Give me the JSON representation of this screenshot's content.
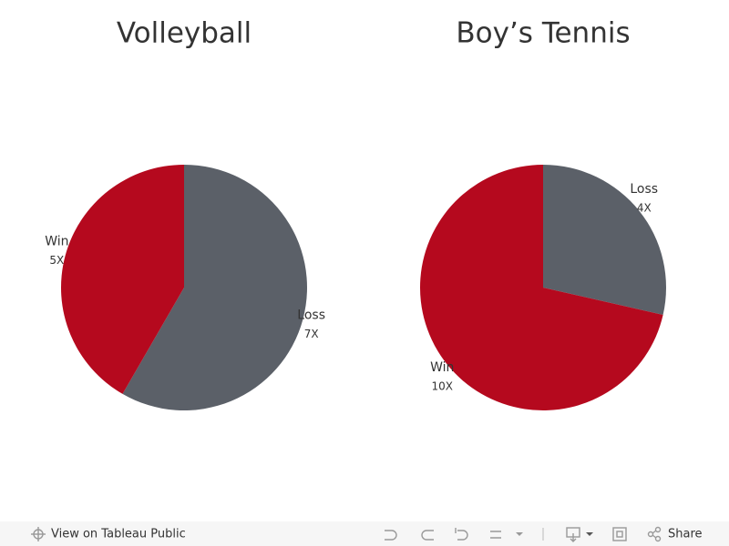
{
  "chart_data": [
    {
      "type": "pie",
      "title": "Volleyball",
      "categories": [
        "Loss",
        "Win"
      ],
      "values": [
        7,
        5
      ],
      "value_labels": [
        "7X",
        "5X"
      ],
      "colors": [
        "#5b6068",
        "#b5091e"
      ]
    },
    {
      "type": "pie",
      "title": "Boy’s Tennis",
      "categories": [
        "Loss",
        "Win"
      ],
      "values": [
        4,
        10
      ],
      "value_labels": [
        "4X",
        "10X"
      ],
      "colors": [
        "#5b6068",
        "#b5091e"
      ]
    }
  ],
  "toolbar": {
    "view_link": "View on Tableau Public",
    "share": "Share"
  }
}
